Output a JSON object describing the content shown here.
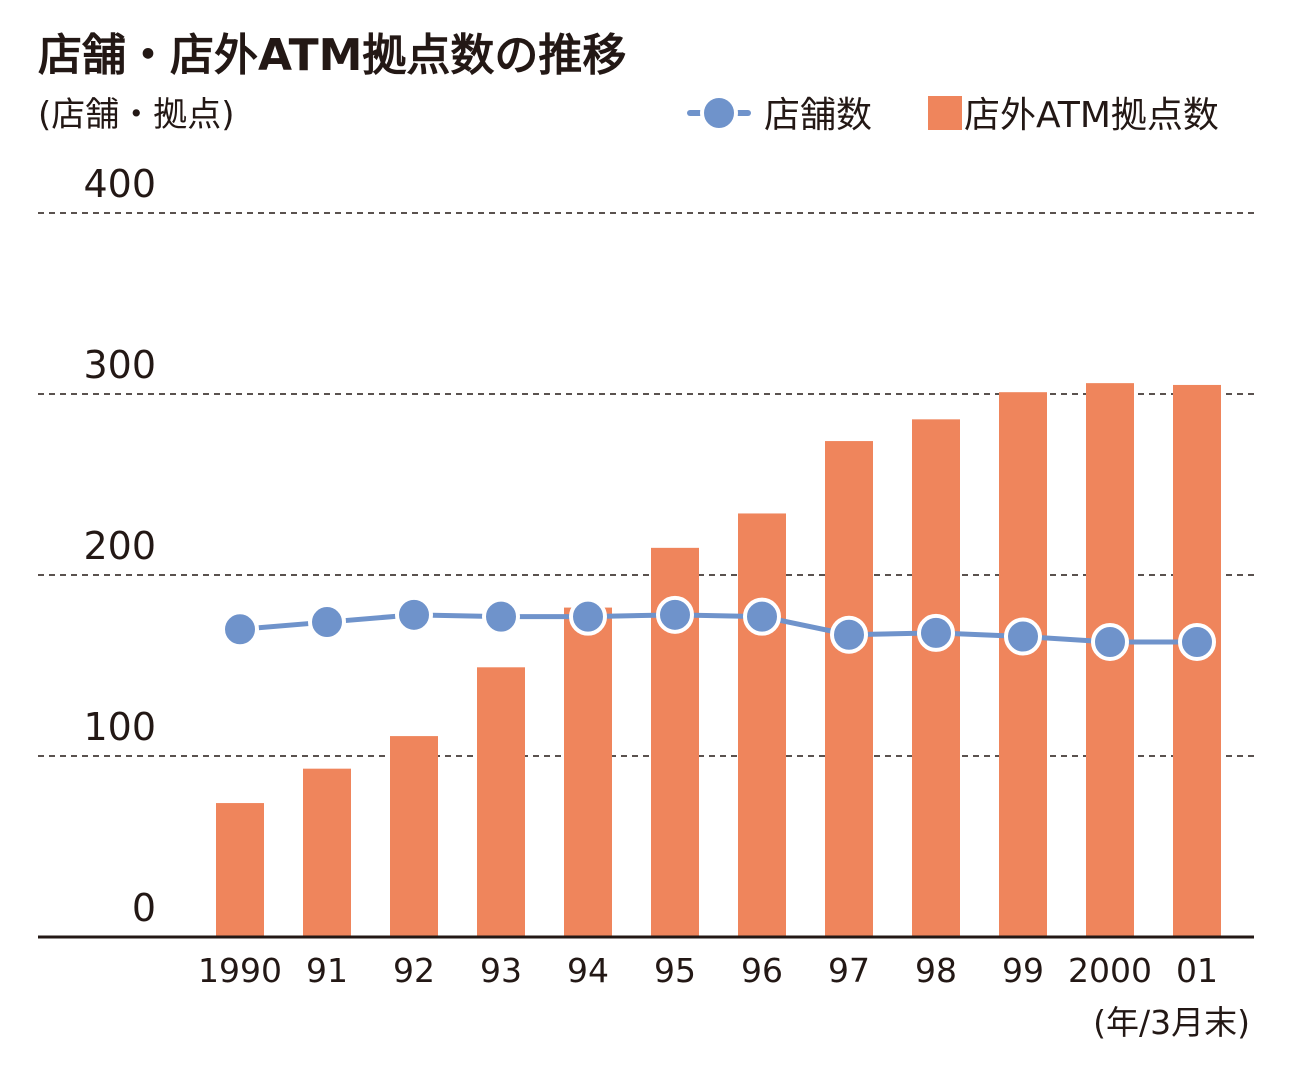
{
  "chart_data": {
    "type": "bar",
    "title": "店舗・店外ATM拠点数の推移",
    "ylabel": "(店舗・拠点)",
    "xlabel": "(年/3月末)",
    "ylim": [
      0,
      400
    ],
    "yticks": [
      "0",
      "100",
      "200",
      "300",
      "400"
    ],
    "yticks_values": [
      0,
      100,
      200,
      300,
      400
    ],
    "grid": true,
    "legend_position": "top-right",
    "categories": [
      "1990",
      "91",
      "92",
      "93",
      "94",
      "95",
      "96",
      "97",
      "98",
      "99",
      "2000",
      "01"
    ],
    "series": [
      {
        "name": "店外ATM拠点数",
        "type": "bar",
        "color": "#ef855c",
        "values": [
          74,
          93,
          111,
          149,
          182,
          215,
          234,
          274,
          286,
          301,
          306,
          305
        ]
      },
      {
        "name": "店舗数",
        "type": "line",
        "color": "#6f93cb",
        "values": [
          170,
          174,
          178,
          177,
          177,
          178,
          177,
          167,
          168,
          166,
          163,
          163
        ]
      }
    ],
    "colors": {
      "axis": "#231815",
      "grid": "#231815",
      "marker_stroke": "#ffffff"
    }
  }
}
